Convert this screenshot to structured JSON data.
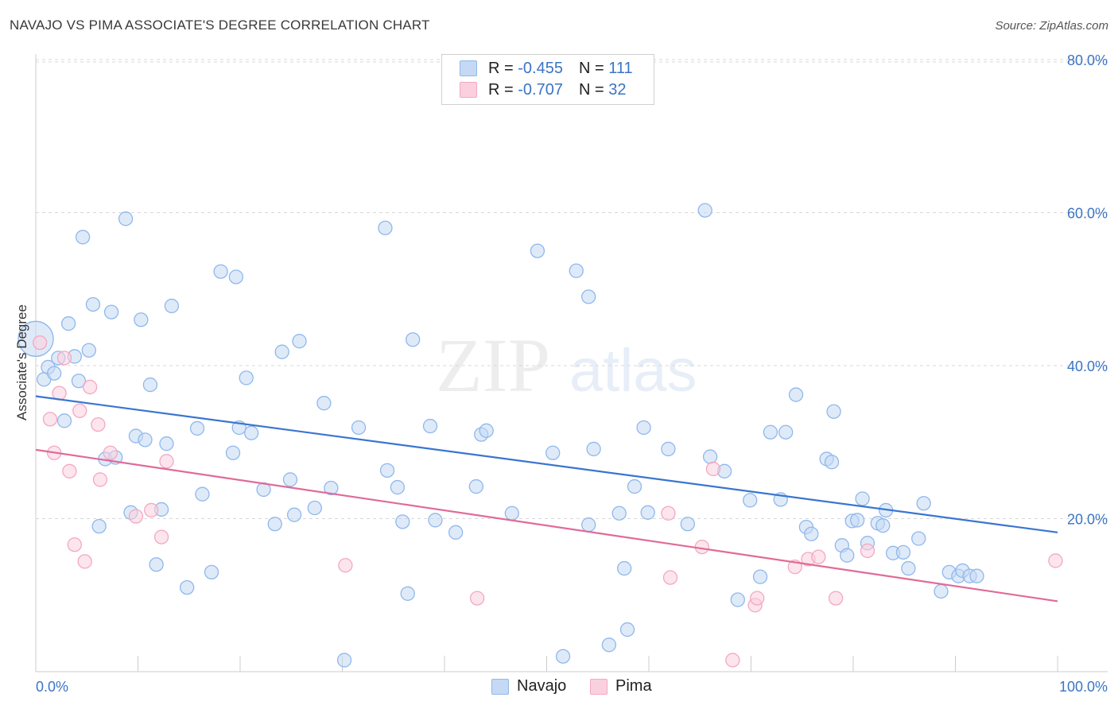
{
  "title": "NAVAJO VS PIMA ASSOCIATE'S DEGREE CORRELATION CHART",
  "source": "Source: ZipAtlas.com",
  "watermark": {
    "zip": "ZIP",
    "atlas": "atlas"
  },
  "legend": {
    "navajo": {
      "r_label": "R =",
      "r_value": "-0.455",
      "n_label": "N =",
      "n_value": "111"
    },
    "pima": {
      "r_label": "R =",
      "r_value": "-0.707",
      "n_label": "N =",
      "n_value": "32"
    }
  },
  "chart_data": {
    "type": "scatter",
    "title": "NAVAJO VS PIMA ASSOCIATE'S DEGREE CORRELATION CHART",
    "xlabel": "",
    "ylabel": "Associate's Degree",
    "xlim": [
      0,
      100
    ],
    "ylim": [
      0,
      80
    ],
    "x_tick_labels": [
      "0.0%",
      "100.0%"
    ],
    "y_ticks": [
      20,
      40,
      60,
      80
    ],
    "y_tick_labels": [
      "20.0%",
      "40.0%",
      "60.0%",
      "80.0%"
    ],
    "grid": "horizontal dashed",
    "legend_position": "top-center",
    "colors": {
      "navajo": "#8fb8ec",
      "navajo_line": "#3a75d0",
      "pima": "#f3a8c0",
      "pima_line": "#e06b98",
      "axis_label": "#3a75c4"
    },
    "series": [
      {
        "name": "Navajo",
        "trend": {
          "x": [
            0,
            100
          ],
          "y": [
            36.0,
            18.2
          ]
        },
        "points": [
          [
            0,
            43.5
          ],
          [
            0.8,
            38.2
          ],
          [
            1.2,
            39.8
          ],
          [
            1.8,
            39
          ],
          [
            2.2,
            41
          ],
          [
            2.8,
            32.8
          ],
          [
            3.2,
            45.5
          ],
          [
            3.8,
            41.2
          ],
          [
            4.2,
            38
          ],
          [
            4.6,
            56.8
          ],
          [
            5.2,
            42
          ],
          [
            5.6,
            48
          ],
          [
            6.2,
            19
          ],
          [
            6.8,
            27.8
          ],
          [
            7.4,
            47
          ],
          [
            7.8,
            28
          ],
          [
            8.8,
            59.2
          ],
          [
            9.3,
            20.8
          ],
          [
            9.8,
            30.8
          ],
          [
            10.3,
            46
          ],
          [
            10.7,
            30.3
          ],
          [
            11.2,
            37.5
          ],
          [
            11.8,
            14
          ],
          [
            12.3,
            21.2
          ],
          [
            12.8,
            29.8
          ],
          [
            13.3,
            47.8
          ],
          [
            14.8,
            11
          ],
          [
            15.8,
            31.8
          ],
          [
            16.3,
            23.2
          ],
          [
            17.2,
            13
          ],
          [
            18.1,
            52.3
          ],
          [
            19.6,
            51.6
          ],
          [
            19.3,
            28.6
          ],
          [
            19.9,
            31.9
          ],
          [
            20.6,
            38.4
          ],
          [
            21.1,
            31.2
          ],
          [
            22.3,
            23.8
          ],
          [
            23.4,
            19.3
          ],
          [
            24.1,
            41.8
          ],
          [
            24.9,
            25.1
          ],
          [
            25.3,
            20.5
          ],
          [
            25.8,
            43.2
          ],
          [
            27.3,
            21.4
          ],
          [
            28.2,
            35.1
          ],
          [
            28.9,
            24
          ],
          [
            30.2,
            1.5
          ],
          [
            31.6,
            31.9
          ],
          [
            34.2,
            58
          ],
          [
            34.4,
            26.3
          ],
          [
            35.4,
            24.1
          ],
          [
            35.9,
            19.6
          ],
          [
            36.4,
            10.2
          ],
          [
            36.9,
            43.4
          ],
          [
            38.6,
            32.1
          ],
          [
            39.1,
            19.8
          ],
          [
            41.1,
            18.2
          ],
          [
            43.1,
            24.2
          ],
          [
            43.6,
            31
          ],
          [
            44.1,
            31.5
          ],
          [
            46.6,
            20.7
          ],
          [
            49.1,
            55
          ],
          [
            50.6,
            28.6
          ],
          [
            51.6,
            2
          ],
          [
            52.9,
            52.4
          ],
          [
            54.1,
            19.2
          ],
          [
            54.1,
            49
          ],
          [
            54.6,
            29.1
          ],
          [
            56.1,
            3.5
          ],
          [
            57.1,
            20.7
          ],
          [
            57.6,
            13.5
          ],
          [
            57.9,
            5.5
          ],
          [
            58.6,
            24.2
          ],
          [
            59.5,
            31.9
          ],
          [
            59.9,
            20.8
          ],
          [
            61.9,
            29.1
          ],
          [
            63.8,
            19.3
          ],
          [
            65.5,
            60.3
          ],
          [
            66,
            28.1
          ],
          [
            67.4,
            26.2
          ],
          [
            68.7,
            9.4
          ],
          [
            69.9,
            22.4
          ],
          [
            70.9,
            12.4
          ],
          [
            71.9,
            31.3
          ],
          [
            72.9,
            22.5
          ],
          [
            73.4,
            31.3
          ],
          [
            74.4,
            36.2
          ],
          [
            75.4,
            18.9
          ],
          [
            75.9,
            18
          ],
          [
            77.4,
            27.8
          ],
          [
            77.9,
            27.4
          ],
          [
            78.1,
            34
          ],
          [
            78.9,
            16.5
          ],
          [
            79.4,
            15.2
          ],
          [
            79.9,
            19.7
          ],
          [
            80.4,
            19.8
          ],
          [
            80.9,
            22.6
          ],
          [
            81.4,
            16.8
          ],
          [
            82.4,
            19.4
          ],
          [
            82.9,
            19.1
          ],
          [
            83.2,
            21.1
          ],
          [
            83.9,
            15.5
          ],
          [
            84.9,
            15.6
          ],
          [
            85.4,
            13.5
          ],
          [
            86.4,
            17.4
          ],
          [
            86.9,
            22
          ],
          [
            88.6,
            10.5
          ],
          [
            89.4,
            13
          ],
          [
            90.3,
            12.5
          ],
          [
            90.7,
            13.2
          ],
          [
            91.4,
            12.5
          ],
          [
            92.1,
            12.5
          ]
        ]
      },
      {
        "name": "Pima",
        "trend": {
          "x": [
            0,
            100
          ],
          "y": [
            29.0,
            9.2
          ]
        },
        "points": [
          [
            0.4,
            43
          ],
          [
            1.4,
            33
          ],
          [
            1.8,
            28.6
          ],
          [
            2.3,
            36.4
          ],
          [
            2.8,
            41
          ],
          [
            3.3,
            26.2
          ],
          [
            3.8,
            16.6
          ],
          [
            4.3,
            34.1
          ],
          [
            4.8,
            14.4
          ],
          [
            5.3,
            37.2
          ],
          [
            6.1,
            32.3
          ],
          [
            6.3,
            25.1
          ],
          [
            7.3,
            28.6
          ],
          [
            9.8,
            20.3
          ],
          [
            11.3,
            21.1
          ],
          [
            12.3,
            17.6
          ],
          [
            12.8,
            27.5
          ],
          [
            30.3,
            13.9
          ],
          [
            43.2,
            9.6
          ],
          [
            61.9,
            20.7
          ],
          [
            62.1,
            12.3
          ],
          [
            65.2,
            16.3
          ],
          [
            66.3,
            26.5
          ],
          [
            68.2,
            1.5
          ],
          [
            70.4,
            8.7
          ],
          [
            70.6,
            9.6
          ],
          [
            74.3,
            13.7
          ],
          [
            75.6,
            14.7
          ],
          [
            76.6,
            15
          ],
          [
            78.3,
            9.6
          ],
          [
            81.4,
            15.8
          ],
          [
            99.8,
            14.5
          ]
        ]
      }
    ]
  }
}
